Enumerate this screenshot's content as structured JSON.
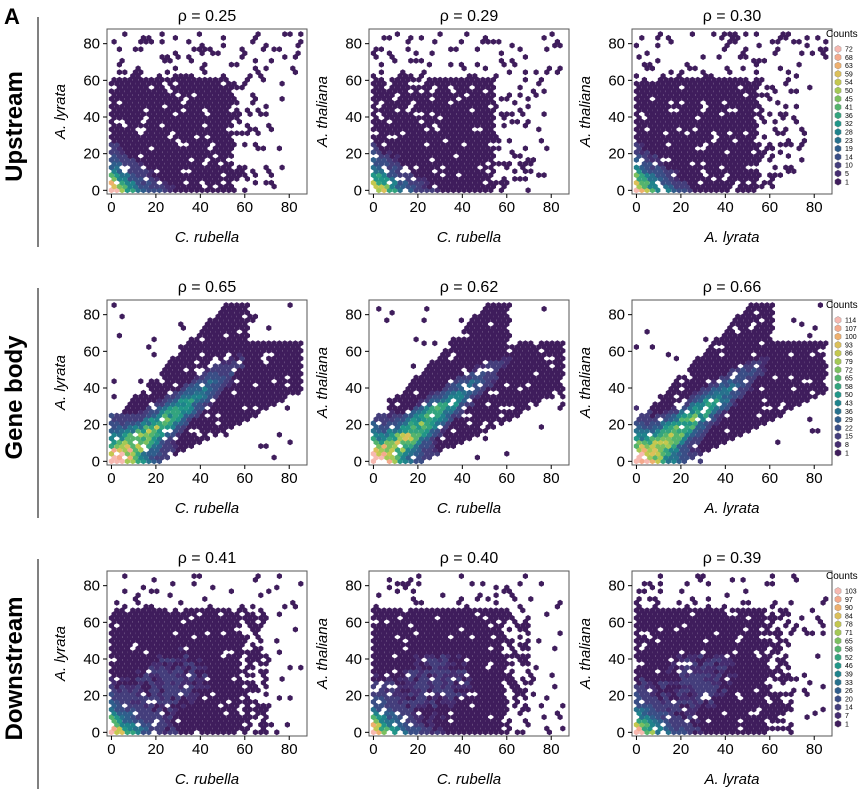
{
  "panel_label": "A",
  "row_labels": [
    "Upstream",
    "Gene body",
    "Downstream"
  ],
  "legend_title": "Counts",
  "legends": [
    [
      72,
      68,
      63,
      59,
      54,
      50,
      45,
      41,
      36,
      32,
      28,
      23,
      19,
      14,
      10,
      5,
      1
    ],
    [
      114,
      107,
      100,
      93,
      86,
      79,
      72,
      65,
      58,
      50,
      43,
      36,
      29,
      22,
      15,
      8,
      1
    ],
    [
      103,
      97,
      90,
      84,
      78,
      71,
      65,
      58,
      52,
      46,
      39,
      33,
      26,
      20,
      14,
      7,
      1
    ]
  ],
  "colors": {
    "low": "#3f1d5c",
    "scale": [
      "#3f1d5c",
      "#452d70",
      "#443e7c",
      "#3a4e86",
      "#2f5e8c",
      "#27718d",
      "#1f838c",
      "#219688",
      "#33a47e",
      "#54b46e",
      "#7bc05f",
      "#a4c955",
      "#c4c84f",
      "#dcc05a",
      "#efb06e",
      "#f5aa8c",
      "#f7b9b1"
    ]
  },
  "chart_data": [
    {
      "type": "heatmap",
      "row": 0,
      "col": 0,
      "title": "ρ = 0.25",
      "xlabel": "C. rubella",
      "ylabel": "A. lyrata",
      "xlim": [
        -2,
        88
      ],
      "ylim": [
        -2,
        88
      ],
      "xticks": [
        0,
        20,
        40,
        60,
        80
      ],
      "yticks": [
        0,
        20,
        40,
        60,
        80
      ],
      "rho": 0.25,
      "pattern": "upstream"
    },
    {
      "type": "heatmap",
      "row": 0,
      "col": 1,
      "title": "ρ = 0.29",
      "xlabel": "C. rubella",
      "ylabel": "A. thaliana",
      "xlim": [
        -2,
        88
      ],
      "ylim": [
        -2,
        88
      ],
      "xticks": [
        0,
        20,
        40,
        60,
        80
      ],
      "yticks": [
        0,
        20,
        40,
        60,
        80
      ],
      "rho": 0.29,
      "pattern": "upstream"
    },
    {
      "type": "heatmap",
      "row": 0,
      "col": 2,
      "title": "ρ = 0.30",
      "xlabel": "A. lyrata",
      "ylabel": "A. thaliana",
      "xlim": [
        -2,
        88
      ],
      "ylim": [
        -2,
        88
      ],
      "xticks": [
        0,
        20,
        40,
        60,
        80
      ],
      "yticks": [
        0,
        20,
        40,
        60,
        80
      ],
      "rho": 0.3,
      "pattern": "upstream"
    },
    {
      "type": "heatmap",
      "row": 1,
      "col": 0,
      "title": "ρ = 0.65",
      "xlabel": "C. rubella",
      "ylabel": "A. lyrata",
      "xlim": [
        -2,
        88
      ],
      "ylim": [
        -2,
        88
      ],
      "xticks": [
        0,
        20,
        40,
        60,
        80
      ],
      "yticks": [
        0,
        20,
        40,
        60,
        80
      ],
      "rho": 0.65,
      "pattern": "genebody"
    },
    {
      "type": "heatmap",
      "row": 1,
      "col": 1,
      "title": "ρ = 0.62",
      "xlabel": "C. rubella",
      "ylabel": "A. thaliana",
      "xlim": [
        -2,
        88
      ],
      "ylim": [
        -2,
        88
      ],
      "xticks": [
        0,
        20,
        40,
        60,
        80
      ],
      "yticks": [
        0,
        20,
        40,
        60,
        80
      ],
      "rho": 0.62,
      "pattern": "genebody"
    },
    {
      "type": "heatmap",
      "row": 1,
      "col": 2,
      "title": "ρ = 0.66",
      "xlabel": "A. lyrata",
      "ylabel": "A. thaliana",
      "xlim": [
        -2,
        88
      ],
      "ylim": [
        -2,
        88
      ],
      "xticks": [
        0,
        20,
        40,
        60,
        80
      ],
      "yticks": [
        0,
        20,
        40,
        60,
        80
      ],
      "rho": 0.66,
      "pattern": "genebody"
    },
    {
      "type": "heatmap",
      "row": 2,
      "col": 0,
      "title": "ρ = 0.41",
      "xlabel": "C. rubella",
      "ylabel": "A. lyrata",
      "xlim": [
        -2,
        88
      ],
      "ylim": [
        -2,
        88
      ],
      "xticks": [
        0,
        20,
        40,
        60,
        80
      ],
      "yticks": [
        0,
        20,
        40,
        60,
        80
      ],
      "rho": 0.41,
      "pattern": "downstream"
    },
    {
      "type": "heatmap",
      "row": 2,
      "col": 1,
      "title": "ρ = 0.40",
      "xlabel": "C. rubella",
      "ylabel": "A. thaliana",
      "xlim": [
        -2,
        88
      ],
      "ylim": [
        -2,
        88
      ],
      "xticks": [
        0,
        20,
        40,
        60,
        80
      ],
      "yticks": [
        0,
        20,
        40,
        60,
        80
      ],
      "rho": 0.4,
      "pattern": "downstream"
    },
    {
      "type": "heatmap",
      "row": 2,
      "col": 2,
      "title": "ρ = 0.39",
      "xlabel": "A. lyrata",
      "ylabel": "A. thaliana",
      "xlim": [
        -2,
        88
      ],
      "ylim": [
        -2,
        88
      ],
      "xticks": [
        0,
        20,
        40,
        60,
        80
      ],
      "yticks": [
        0,
        20,
        40,
        60,
        80
      ],
      "rho": 0.39,
      "pattern": "downstream"
    }
  ]
}
